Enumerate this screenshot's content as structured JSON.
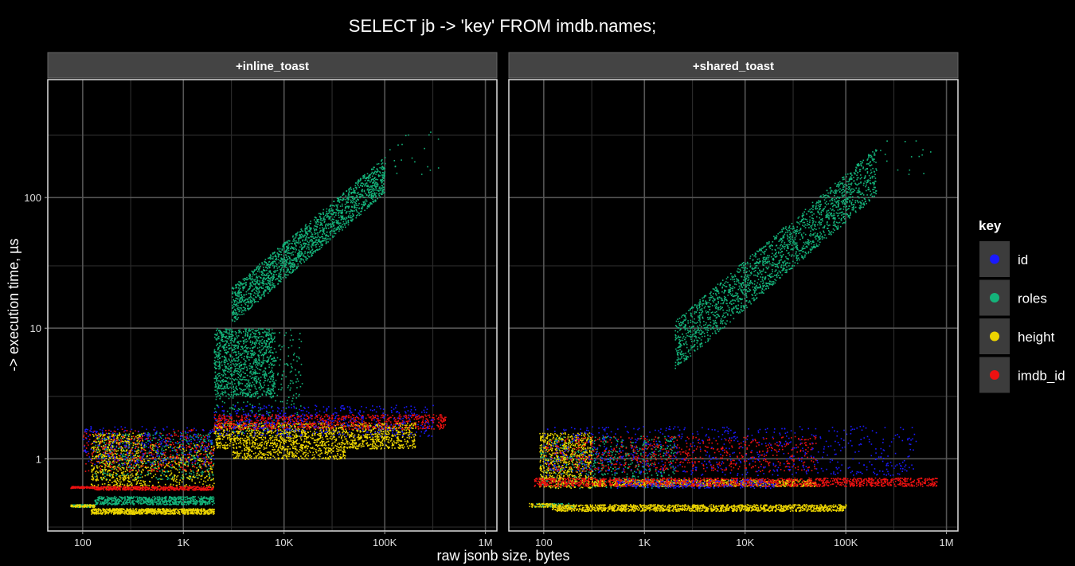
{
  "chart_data": {
    "type": "scatter",
    "title": "SELECT jb -> 'key' FROM imdb.names;",
    "xlabel": "raw jsonb size, bytes",
    "ylabel": "-> execution time, µs",
    "x_scale": "log",
    "y_scale": "log",
    "xlim": [
      45,
      1300000
    ],
    "ylim": [
      0.28,
      800
    ],
    "x_ticks": [
      100,
      1000,
      10000,
      100000,
      1000000
    ],
    "x_tick_labels": [
      "100",
      "1K",
      "10K",
      "100K",
      "1M"
    ],
    "y_ticks": [
      1,
      10,
      100
    ],
    "y_tick_labels": [
      "1",
      "10",
      "100"
    ],
    "grid": true,
    "legend": {
      "title": "key",
      "placement": "right",
      "entries": [
        {
          "name": "id",
          "color": "#1a1aff"
        },
        {
          "name": "roles",
          "color": "#14b37a"
        },
        {
          "name": "height",
          "color": "#ecd400"
        },
        {
          "name": "imdb_id",
          "color": "#ee1111"
        }
      ]
    },
    "panels": [
      {
        "label": "+inline_toast",
        "series": [
          {
            "name": "roles",
            "color": "#14b37a",
            "clusters": [
              {
                "x": [
                  75,
                  130
                ],
                "y": [
                  0.43,
                  0.45
                ],
                "n": 120
              },
              {
                "x": [
                  130,
                  2000
                ],
                "y": [
                  0.45,
                  0.52
                ],
                "n": 700
              },
              {
                "x": [
                  130,
                  2000
                ],
                "y": [
                  0.7,
                  1.6
                ],
                "n": 500
              },
              {
                "x": [
                  2000,
                  8000
                ],
                "y": [
                  3,
                  10
                ],
                "n": 900
              },
              {
                "x": [
                  2000,
                  15000
                ],
                "y": [
                  1.5,
                  10
                ],
                "n": 400
              },
              {
                "x": [
                  3000,
                  100000
                ],
                "y": [
                  15,
                  150
                ],
                "n": 1800,
                "trend": "diagonal"
              },
              {
                "x": [
                  100000,
                  350000
                ],
                "y": [
                  150,
                  330
                ],
                "n": 20
              }
            ]
          },
          {
            "name": "height",
            "color": "#ecd400",
            "clusters": [
              {
                "x": [
                  75,
                  130
                ],
                "y": [
                  0.43,
                  0.45
                ],
                "n": 80
              },
              {
                "x": [
                  120,
                  2000
                ],
                "y": [
                  0.38,
                  0.42
                ],
                "n": 800
              },
              {
                "x": [
                  120,
                  400
                ],
                "y": [
                  0.6,
                  1.6
                ],
                "n": 600
              },
              {
                "x": [
                  400,
                  2000
                ],
                "y": [
                  0.6,
                  1.3
                ],
                "n": 300
              },
              {
                "x": [
                  2000,
                  200000
                ],
                "y": [
                  1.2,
                  1.9
                ],
                "n": 1500
              },
              {
                "x": [
                  3000,
                  40000
                ],
                "y": [
                  1.0,
                  1.2
                ],
                "n": 300
              }
            ]
          },
          {
            "name": "imdb_id",
            "color": "#ee1111",
            "clusters": [
              {
                "x": [
                  75,
                  130
                ],
                "y": [
                  0.6,
                  0.62
                ],
                "n": 120
              },
              {
                "x": [
                  130,
                  2000
                ],
                "y": [
                  0.58,
                  0.62
                ],
                "n": 500
              },
              {
                "x": [
                  100,
                  2000
                ],
                "y": [
                  0.8,
                  1.7
                ],
                "n": 400
              },
              {
                "x": [
                  2000,
                  400000
                ],
                "y": [
                  1.7,
                  2.2
                ],
                "n": 800
              }
            ]
          },
          {
            "name": "id",
            "color": "#1a1aff",
            "clusters": [
              {
                "x": [
                  100,
                  2000
                ],
                "y": [
                  0.9,
                  1.8
                ],
                "n": 300
              },
              {
                "x": [
                  2000,
                  300000
                ],
                "y": [
                  1.5,
                  2.6
                ],
                "n": 500
              }
            ]
          }
        ]
      },
      {
        "label": "+shared_toast",
        "series": [
          {
            "name": "roles",
            "color": "#14b37a",
            "clusters": [
              {
                "x": [
                  2000,
                  200000
                ],
                "y": [
                  7.5,
                  160
                ],
                "n": 2000,
                "trend": "diagonal"
              },
              {
                "x": [
                  90,
                  2000
                ],
                "y": [
                  0.6,
                  1.5
                ],
                "n": 600
              },
              {
                "x": [
                  80,
                  200
                ],
                "y": [
                  0.43,
                  0.46
                ],
                "n": 80
              },
              {
                "x": [
                  200000,
                  800000
                ],
                "y": [
                  150,
                  320
                ],
                "n": 15
              }
            ]
          },
          {
            "name": "height",
            "color": "#ecd400",
            "clusters": [
              {
                "x": [
                  120,
                  100000
                ],
                "y": [
                  0.4,
                  0.45
                ],
                "n": 1400
              },
              {
                "x": [
                  90,
                  300
                ],
                "y": [
                  0.6,
                  1.6
                ],
                "n": 700
              },
              {
                "x": [
                  300,
                  50000
                ],
                "y": [
                  0.62,
                  0.7
                ],
                "n": 800
              },
              {
                "x": [
                  70,
                  130
                ],
                "y": [
                  0.43,
                  0.46
                ],
                "n": 60
              }
            ]
          },
          {
            "name": "imdb_id",
            "color": "#ee1111",
            "clusters": [
              {
                "x": [
                  80,
                  800000
                ],
                "y": [
                  0.62,
                  0.72
                ],
                "n": 1400
              },
              {
                "x": [
                  100,
                  50000
                ],
                "y": [
                  0.8,
                  1.5
                ],
                "n": 700
              }
            ]
          },
          {
            "name": "id",
            "color": "#1a1aff",
            "clusters": [
              {
                "x": [
                  100,
                  500000
                ],
                "y": [
                  0.75,
                  1.8
                ],
                "n": 700
              },
              {
                "x": [
                  500,
                  20000
                ],
                "y": [
                  0.6,
                  0.7
                ],
                "n": 200
              }
            ]
          }
        ]
      }
    ]
  }
}
